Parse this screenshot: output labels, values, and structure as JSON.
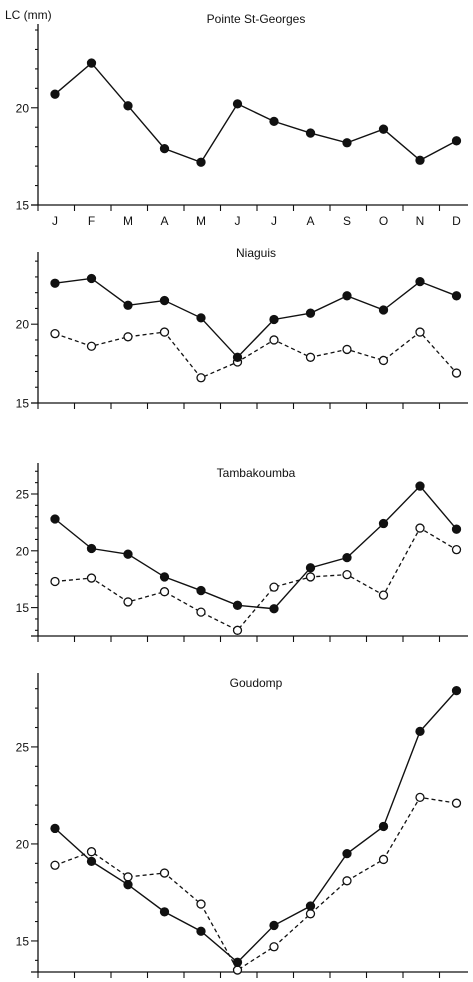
{
  "ylabel": "LC (mm)",
  "chart_data": [
    {
      "type": "line",
      "title": "Pointe St-Georges",
      "categories": [
        "J",
        "F",
        "M",
        "A",
        "M",
        "J",
        "J",
        "A",
        "S",
        "O",
        "N",
        "D"
      ],
      "ylim": [
        15,
        24
      ],
      "yticks": [
        15,
        20
      ],
      "series": [
        {
          "style": "solid",
          "marker": "filled",
          "values": [
            20.7,
            22.3,
            20.1,
            17.9,
            17.2,
            20.2,
            19.3,
            18.7,
            18.2,
            18.9,
            17.3,
            18.3
          ]
        }
      ]
    },
    {
      "type": "line",
      "title": "Niaguis",
      "categories": [
        "J",
        "F",
        "M",
        "A",
        "M",
        "J",
        "J",
        "A",
        "S",
        "O",
        "N",
        "D"
      ],
      "ylim": [
        15,
        24.2
      ],
      "yticks": [
        15,
        20
      ],
      "series": [
        {
          "style": "solid",
          "marker": "filled",
          "values": [
            22.6,
            22.9,
            21.2,
            21.5,
            20.4,
            17.9,
            20.3,
            20.7,
            21.8,
            20.9,
            22.7,
            21.8
          ]
        },
        {
          "style": "dashed",
          "marker": "open",
          "values": [
            19.4,
            18.6,
            19.2,
            19.5,
            16.6,
            17.6,
            19.0,
            17.9,
            18.4,
            17.7,
            19.5,
            16.9
          ]
        }
      ]
    },
    {
      "type": "line",
      "title": "Tambakoumba",
      "categories": [
        "J",
        "F",
        "M",
        "A",
        "M",
        "J",
        "J",
        "A",
        "S",
        "O",
        "N",
        "D"
      ],
      "ylim": [
        12.5,
        27.2
      ],
      "yticks": [
        15,
        20,
        25
      ],
      "series": [
        {
          "style": "solid",
          "marker": "filled",
          "values": [
            22.8,
            20.2,
            19.7,
            17.7,
            16.5,
            15.2,
            14.9,
            18.5,
            19.4,
            22.4,
            25.7,
            21.9
          ]
        },
        {
          "style": "dashed",
          "marker": "open",
          "values": [
            17.3,
            17.6,
            15.5,
            16.4,
            14.6,
            13.0,
            16.8,
            17.7,
            17.9,
            16.1,
            22.0,
            20.1
          ]
        }
      ]
    },
    {
      "type": "line",
      "title": "Goudomp",
      "categories": [
        "J",
        "F",
        "M",
        "A",
        "M",
        "J",
        "J",
        "A",
        "S",
        "O",
        "N",
        "D"
      ],
      "ylim": [
        13.4,
        28.5
      ],
      "yticks": [
        15,
        20,
        25
      ],
      "series": [
        {
          "style": "solid",
          "marker": "filled",
          "values": [
            20.8,
            19.1,
            17.9,
            16.5,
            15.5,
            13.9,
            15.8,
            16.8,
            19.5,
            20.9,
            25.8,
            27.9
          ]
        },
        {
          "style": "dashed",
          "marker": "open",
          "values": [
            18.9,
            19.6,
            18.3,
            18.5,
            16.9,
            13.5,
            14.7,
            16.4,
            18.1,
            19.2,
            22.4,
            22.1
          ]
        }
      ]
    }
  ]
}
